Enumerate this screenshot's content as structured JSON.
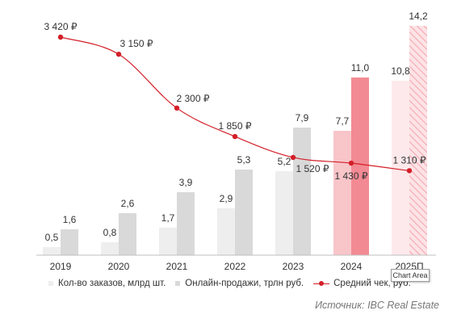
{
  "chart_data": {
    "type": "bar",
    "categories": [
      "2019",
      "2020",
      "2021",
      "2022",
      "2023",
      "2024",
      "2025П"
    ],
    "series": [
      {
        "name": "Кол-во заказов, млрд шт.",
        "kind": "bar",
        "values": [
          0.5,
          0.8,
          1.7,
          2.9,
          5.2,
          7.7,
          10.8
        ],
        "labels": [
          "0,5",
          "0,8",
          "1,7",
          "2,9",
          "5,2",
          "7,7",
          "10,8"
        ]
      },
      {
        "name": "Онлайн-продажи, трлн руб.",
        "kind": "bar",
        "values": [
          1.6,
          2.6,
          3.9,
          5.3,
          7.9,
          11.0,
          14.2
        ],
        "labels": [
          "1,6",
          "2,6",
          "3,9",
          "5,3",
          "7,9",
          "11,0",
          "14,2"
        ]
      },
      {
        "name": "Средний чек, руб.",
        "kind": "line",
        "values": [
          3420,
          3150,
          2300,
          1850,
          1520,
          1430,
          1310
        ],
        "labels": [
          "3 420 ₽",
          "3 150 ₽",
          "2 300 ₽",
          "1 850 ₽",
          "1 520 ₽",
          "1 430 ₽",
          "1 310 ₽"
        ]
      }
    ],
    "highlight_category": "2024",
    "forecast_category": "2025П",
    "legend_position": "bottom",
    "grid": false,
    "colors": {
      "orders": "#eeeeee",
      "online": "#d9d9d9",
      "orders_2024": "#f8c5c9",
      "online_2024": "#f28a93",
      "orders_2025": "#fde9eb",
      "online_2025_hatch": "#f6b3b9",
      "line": "#d31f28"
    }
  },
  "tooltip": "Chart Area",
  "source": "Источник: IBC Real Estate"
}
